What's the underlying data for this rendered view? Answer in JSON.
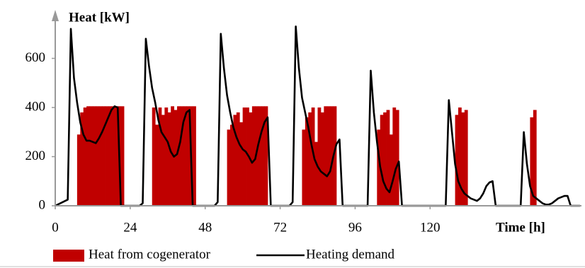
{
  "chart_data": {
    "type": "combo",
    "y_label": "Heat [kW]",
    "x_label": "Time [h]",
    "xlim": [
      0,
      168
    ],
    "ylim": [
      0,
      780
    ],
    "xticks": [
      0,
      24,
      48,
      72,
      96,
      120
    ],
    "yticks": [
      0,
      200,
      400,
      600
    ],
    "grid": false,
    "legend": "bottom",
    "series": [
      {
        "name": "Heat from cogenerator",
        "type": "bar",
        "color": "#c00000",
        "x": [
          7,
          8,
          9,
          10,
          11,
          12,
          13,
          14,
          15,
          16,
          17,
          18,
          19,
          20,
          21,
          31,
          32,
          33,
          34,
          35,
          36,
          37,
          38,
          39,
          40,
          41,
          42,
          43,
          44,
          55,
          56,
          57,
          58,
          59,
          60,
          61,
          62,
          63,
          64,
          65,
          66,
          67,
          79,
          80,
          81,
          82,
          83,
          84,
          85,
          86,
          87,
          88,
          89,
          103,
          104,
          105,
          106,
          107,
          108,
          109,
          128,
          129,
          130,
          131,
          152,
          153
        ],
        "values": [
          290,
          380,
          400,
          405,
          405,
          405,
          405,
          405,
          405,
          405,
          405,
          405,
          405,
          405,
          405,
          400,
          330,
          400,
          370,
          400,
          380,
          405,
          390,
          405,
          405,
          405,
          405,
          405,
          405,
          310,
          330,
          370,
          380,
          340,
          400,
          400,
          380,
          405,
          405,
          405,
          405,
          405,
          310,
          360,
          380,
          400,
          260,
          400,
          380,
          405,
          405,
          405,
          405,
          310,
          370,
          380,
          390,
          290,
          400,
          390,
          370,
          400,
          380,
          390,
          360,
          390
        ]
      },
      {
        "name": "Heating demand",
        "type": "line",
        "color": "#000000",
        "x": [
          0,
          4,
          5,
          6,
          7,
          8,
          9,
          10,
          11,
          12,
          13,
          14,
          15,
          16,
          17,
          18,
          19,
          20,
          21,
          27,
          28,
          29,
          30,
          31,
          32,
          33,
          34,
          35,
          36,
          37,
          38,
          39,
          40,
          41,
          42,
          43,
          44,
          51,
          52,
          53,
          54,
          55,
          56,
          57,
          58,
          59,
          60,
          61,
          62,
          63,
          64,
          65,
          66,
          67,
          68,
          69,
          75,
          76,
          77,
          78,
          79,
          80,
          81,
          82,
          83,
          84,
          85,
          86,
          87,
          88,
          89,
          90,
          91,
          92,
          100,
          101,
          102,
          103,
          104,
          105,
          106,
          107,
          108,
          109,
          110,
          111,
          125,
          126,
          127,
          128,
          129,
          130,
          131,
          132,
          133,
          134,
          135,
          136,
          137,
          138,
          139,
          140,
          141,
          149,
          150,
          151,
          152,
          153,
          154,
          155,
          156,
          157,
          158,
          159,
          160,
          161,
          162,
          163,
          164,
          165,
          168
        ],
        "values": [
          0,
          25,
          720,
          520,
          420,
          340,
          290,
          265,
          265,
          260,
          255,
          275,
          300,
          330,
          360,
          390,
          405,
          400,
          0,
          0,
          10,
          680,
          570,
          480,
          420,
          350,
          300,
          280,
          260,
          220,
          200,
          210,
          260,
          340,
          380,
          390,
          0,
          0,
          15,
          700,
          560,
          450,
          380,
          320,
          280,
          250,
          230,
          220,
          200,
          175,
          190,
          250,
          300,
          340,
          360,
          0,
          0,
          15,
          730,
          560,
          440,
          380,
          320,
          250,
          190,
          160,
          140,
          130,
          120,
          140,
          200,
          250,
          270,
          0,
          0,
          550,
          380,
          260,
          160,
          100,
          70,
          55,
          100,
          150,
          180,
          0,
          0,
          430,
          300,
          170,
          100,
          70,
          50,
          40,
          30,
          25,
          20,
          30,
          50,
          80,
          95,
          100,
          0,
          0,
          300,
          170,
          80,
          40,
          30,
          20,
          10,
          5,
          5,
          10,
          20,
          30,
          35,
          40,
          40,
          0,
          0
        ]
      }
    ]
  }
}
